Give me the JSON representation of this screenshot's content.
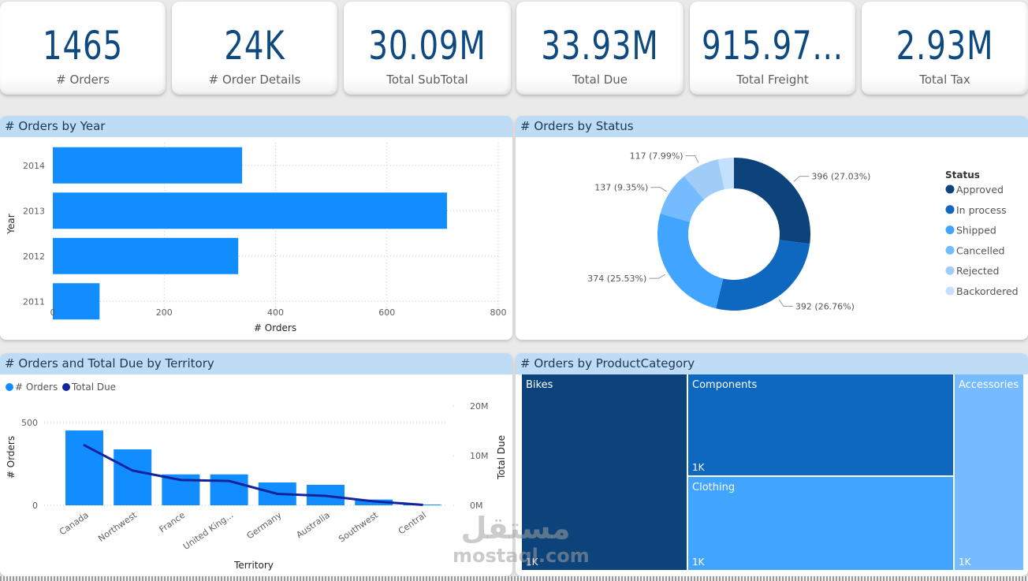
{
  "kpis": [
    {
      "value": "1465",
      "label": "# Orders"
    },
    {
      "value": "24K",
      "label": "# Order Details"
    },
    {
      "value": "30.09M",
      "label": "Total SubTotal"
    },
    {
      "value": "33.93M",
      "label": "Total Due"
    },
    {
      "value": "915.97...",
      "label": "Total Freight"
    },
    {
      "value": "2.93M",
      "label": "Total Tax"
    }
  ],
  "colors": {
    "primary": "#118dff",
    "line": "#12239e",
    "kpi_value": "#0e4a80",
    "header_bg": "#bfdcf7"
  },
  "chart_data": [
    {
      "id": "orders_by_year",
      "type": "bar",
      "orientation": "horizontal",
      "title": "# Orders by Year",
      "xlabel": "# Orders",
      "ylabel": "Year",
      "categories": [
        "2014",
        "2013",
        "2012",
        "2011"
      ],
      "values": [
        340,
        708,
        333,
        84
      ],
      "xlim": [
        0,
        800
      ],
      "xticks": [
        "0",
        "200",
        "400",
        "600",
        "800"
      ],
      "grid": true
    },
    {
      "id": "orders_by_status",
      "type": "pie",
      "variant": "donut",
      "title": "# Orders by Status",
      "legend_title": "Status",
      "legend_position": "right",
      "slices": [
        {
          "label": "Approved",
          "value": 396,
          "pct": "27.03%",
          "data_label": "396 (27.03%)",
          "color": "#0b437a"
        },
        {
          "label": "In process",
          "value": 392,
          "pct": "26.76%",
          "data_label": "392 (26.76%)",
          "color": "#0f68bf"
        },
        {
          "label": "Shipped",
          "value": 374,
          "pct": "25.53%",
          "data_label": "374 (25.53%)",
          "color": "#41a4ff"
        },
        {
          "label": "Cancelled",
          "value": 137,
          "pct": "9.35%",
          "data_label": "137 (9.35%)",
          "color": "#75bbff"
        },
        {
          "label": "Rejected",
          "value": 117,
          "pct": "7.99%",
          "data_label": "117 (7.99%)",
          "color": "#9fcdf8"
        },
        {
          "label": "Backordered",
          "value": 49,
          "pct": "",
          "data_label": "",
          "color": "#c5e0fb"
        }
      ]
    },
    {
      "id": "orders_due_by_territory",
      "type": "bar",
      "combo": "bar+line",
      "title": "# Orders and Total Due by Territory",
      "xlabel": "Territory",
      "ylabel": "# Orders",
      "y2label": "Total Due",
      "legend_position": "top-left",
      "categories": [
        "Canada",
        "Northwest",
        "France",
        "United King...",
        "Germany",
        "Australia",
        "Southwest",
        "Central"
      ],
      "series": [
        {
          "name": "# Orders",
          "type": "bar",
          "axis": "left",
          "color": "#118dff",
          "values": [
            452,
            338,
            187,
            187,
            138,
            124,
            35,
            5
          ]
        },
        {
          "name": "Total Due",
          "type": "line",
          "axis": "right",
          "color": "#12239e",
          "values": [
            12.1,
            7.0,
            5.1,
            4.9,
            2.3,
            1.9,
            0.8,
            0.1
          ],
          "unit": "M"
        }
      ],
      "ylim": [
        0,
        600
      ],
      "yticks": [
        "0",
        "500"
      ],
      "y2lim": [
        0,
        20
      ],
      "y2ticks": [
        "0M",
        "10M",
        "20M"
      ],
      "grid": true
    },
    {
      "id": "orders_by_productcategory",
      "type": "heatmap",
      "variant": "treemap",
      "title": "# Orders by ProductCategory",
      "cells": [
        {
          "label": "Bikes",
          "value_label": "1K",
          "color": "#0b437a"
        },
        {
          "label": "Components",
          "value_label": "1K",
          "color": "#0f68bf"
        },
        {
          "label": "Clothing",
          "value_label": "1K",
          "color": "#41a4ff"
        },
        {
          "label": "Accessories",
          "value_label": "1K",
          "color": "#75bbff"
        }
      ]
    }
  ],
  "watermark": {
    "arabic": "مستقل",
    "latin": "mostaql.com"
  }
}
